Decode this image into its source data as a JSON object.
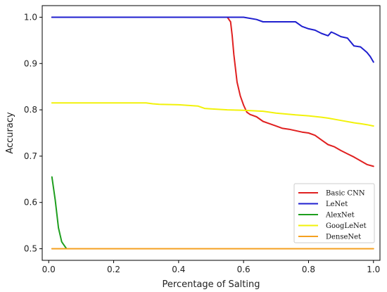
{
  "chart_data": {
    "type": "line",
    "xlabel": "Percentage of Salting",
    "ylabel": "Accuracy",
    "xlim": [
      -0.02,
      1.02
    ],
    "ylim": [
      0.475,
      1.025
    ],
    "xticks": [
      0.0,
      0.2,
      0.4,
      0.6,
      0.8,
      1.0
    ],
    "xtick_labels": [
      "0.0",
      "0.2",
      "0.4",
      "0.6",
      "0.8",
      "1.0"
    ],
    "yticks": [
      0.5,
      0.6,
      0.7,
      0.8,
      0.9,
      1.0
    ],
    "ytick_labels": [
      "0.5",
      "0.6",
      "0.7",
      "0.8",
      "0.9",
      "1.0"
    ],
    "grid": false,
    "legend_position": "lower-right",
    "series": [
      {
        "name": "Basic CNN",
        "color": "#e02020",
        "x": [
          0.01,
          0.1,
          0.2,
          0.3,
          0.4,
          0.5,
          0.55,
          0.56,
          0.565,
          0.57,
          0.575,
          0.58,
          0.59,
          0.6,
          0.61,
          0.62,
          0.64,
          0.66,
          0.68,
          0.7,
          0.72,
          0.74,
          0.76,
          0.78,
          0.8,
          0.82,
          0.84,
          0.86,
          0.88,
          0.9,
          0.92,
          0.94,
          0.96,
          0.98,
          1.0
        ],
        "y": [
          1.0,
          1.0,
          1.0,
          1.0,
          1.0,
          1.0,
          1.0,
          0.99,
          0.96,
          0.92,
          0.89,
          0.86,
          0.83,
          0.81,
          0.795,
          0.79,
          0.785,
          0.775,
          0.77,
          0.765,
          0.76,
          0.758,
          0.755,
          0.752,
          0.75,
          0.745,
          0.735,
          0.725,
          0.72,
          0.712,
          0.705,
          0.698,
          0.69,
          0.682,
          0.678
        ]
      },
      {
        "name": "LeNet",
        "color": "#1f1fcf",
        "x": [
          0.01,
          0.1,
          0.2,
          0.3,
          0.4,
          0.5,
          0.6,
          0.64,
          0.66,
          0.7,
          0.76,
          0.78,
          0.8,
          0.82,
          0.84,
          0.86,
          0.87,
          0.88,
          0.9,
          0.92,
          0.94,
          0.96,
          0.97,
          0.98,
          0.99,
          1.0
        ],
        "y": [
          1.0,
          1.0,
          1.0,
          1.0,
          1.0,
          1.0,
          1.0,
          0.995,
          0.99,
          0.99,
          0.99,
          0.98,
          0.975,
          0.972,
          0.965,
          0.96,
          0.968,
          0.965,
          0.958,
          0.955,
          0.938,
          0.936,
          0.93,
          0.924,
          0.915,
          0.903
        ]
      },
      {
        "name": "AlexNet",
        "color": "#1e9e1e",
        "x": [
          0.01,
          0.02,
          0.03,
          0.035,
          0.04,
          0.05,
          0.055
        ],
        "y": [
          0.655,
          0.605,
          0.545,
          0.53,
          0.515,
          0.505,
          0.5
        ]
      },
      {
        "name": "GoogLeNet",
        "color": "#f2f20a",
        "x": [
          0.01,
          0.1,
          0.2,
          0.3,
          0.32,
          0.34,
          0.4,
          0.46,
          0.48,
          0.5,
          0.55,
          0.6,
          0.66,
          0.7,
          0.76,
          0.8,
          0.84,
          0.86,
          0.9,
          0.94,
          0.96,
          0.98,
          1.0
        ],
        "y": [
          0.815,
          0.815,
          0.815,
          0.815,
          0.813,
          0.812,
          0.811,
          0.808,
          0.803,
          0.802,
          0.8,
          0.799,
          0.797,
          0.793,
          0.789,
          0.787,
          0.784,
          0.782,
          0.777,
          0.772,
          0.77,
          0.768,
          0.765
        ]
      },
      {
        "name": "DenseNet",
        "color": "#f5a020",
        "x": [
          0.01,
          0.2,
          0.4,
          0.6,
          0.8,
          1.0
        ],
        "y": [
          0.5,
          0.5,
          0.5,
          0.5,
          0.5,
          0.5
        ]
      }
    ]
  }
}
